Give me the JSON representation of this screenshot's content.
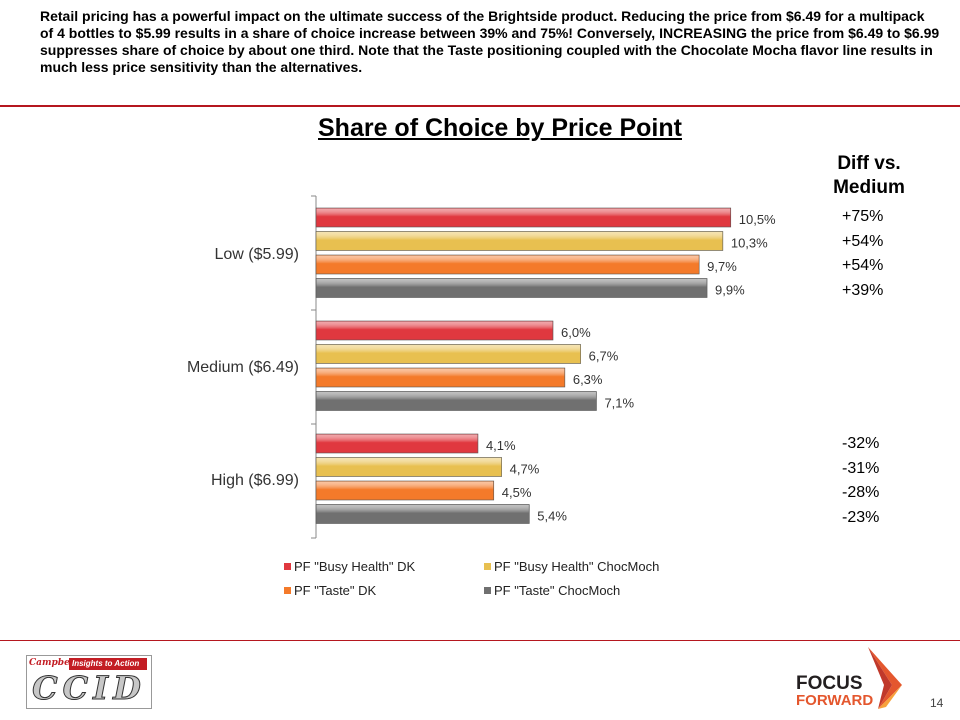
{
  "intro_text": "Retail pricing has a powerful impact on the ultimate success of the Brightside product.  Reducing the price from $6.49 for a multipack of 4 bottles to $5.99 results in a share of choice increase between 39% and 75%!  Conversely, INCREASING the price from $6.49 to $6.99 suppresses share of choice by about one third.  Note that the Taste positioning coupled with the Chocolate Mocha flavor line results in much less price sensitivity than the alternatives.",
  "chart_data": {
    "type": "bar",
    "orientation": "horizontal",
    "title": "Share of Choice by Price Point",
    "categories": [
      "Low ($5.99)",
      "Medium ($6.49)",
      "High ($6.99)"
    ],
    "series": [
      {
        "name": "PF \"Busy Health\" DK",
        "color": "#e0383f",
        "values": [
          10.5,
          6.0,
          4.1
        ],
        "labels": [
          "10,5%",
          "6,0%",
          "4,1%"
        ]
      },
      {
        "name": "PF \"Busy Health\" ChocMoch",
        "color": "#e8c050",
        "values": [
          10.3,
          6.7,
          4.7
        ],
        "labels": [
          "10,3%",
          "6,7%",
          "4,7%"
        ]
      },
      {
        "name": "PF \"Taste\" DK",
        "color": "#f47a2a",
        "values": [
          9.7,
          6.3,
          4.5
        ],
        "labels": [
          "9,7%",
          "6,3%",
          "4,5%"
        ]
      },
      {
        "name": "PF \"Taste\" ChocMoch",
        "color": "#707070",
        "values": [
          9.9,
          7.1,
          5.4
        ],
        "labels": [
          "9,9%",
          "7,1%",
          "5,4%"
        ]
      }
    ],
    "xlim": [
      0,
      14
    ],
    "grid": false,
    "legend_placement": "bottom"
  },
  "diff": {
    "header": "Diff vs. Medium",
    "low": [
      "+75%",
      "+54%",
      "+54%",
      "+39%"
    ],
    "high": [
      "-32%",
      "-31%",
      "-28%",
      "-23%"
    ]
  },
  "footer": {
    "page_number": "14",
    "left_logo_text": "CCID",
    "left_logo_brand": "Campbell's",
    "left_logo_tagline": "Insights to Action",
    "right_logo_line1": "FOCUS",
    "right_logo_line2": "FORWARD"
  },
  "colors": {
    "accent_rule": "#b5171f"
  }
}
